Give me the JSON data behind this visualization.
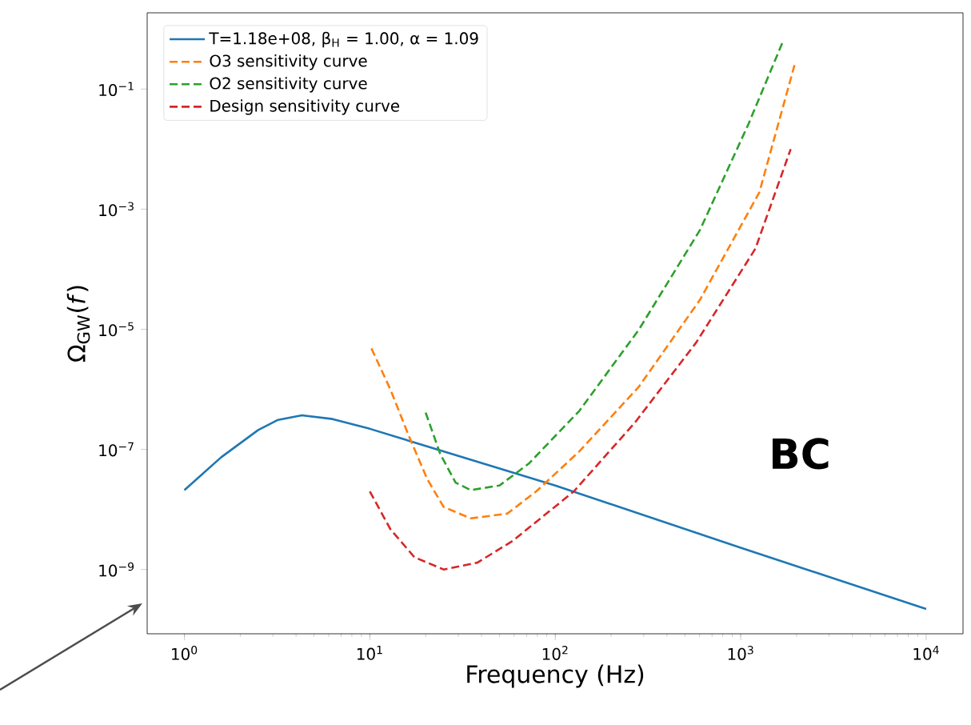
{
  "chart_data": {
    "type": "line",
    "log": "xy",
    "legend": "top left",
    "xlabel": "Frequency (Hz)",
    "ylabel": "Ω$_{GW}$(*f*)",
    "xlim": [
      0.63,
      15800
    ],
    "ylim": [
      8.5e-11,
      1.86
    ],
    "xticks": [
      {
        "value": 1,
        "label": "10$^{0}$"
      },
      {
        "value": 10,
        "label": "10$^{1}$"
      },
      {
        "value": 100,
        "label": "10$^{2}$"
      },
      {
        "value": 1000,
        "label": "10$^{3}$"
      },
      {
        "value": 10000,
        "label": "10$^{4}$"
      }
    ],
    "yticks": [
      {
        "value": 1e-09,
        "label": "10$^{−9}$"
      },
      {
        "value": 1e-07,
        "label": "10$^{−7}$"
      },
      {
        "value": 1e-05,
        "label": "10$^{−5}$"
      },
      {
        "value": 0.001,
        "label": "10$^{−3}$"
      },
      {
        "value": 0.1,
        "label": "10$^{−1}$"
      }
    ],
    "annotations": [
      "BC"
    ],
    "series": [
      {
        "name": "T=1.18e+08, β$_{H}$ = 1.00, α = 1.09",
        "color": "#1f77b4",
        "line_style": "solid",
        "x": [
          1,
          1.58,
          2.5,
          3.2,
          4.3,
          6.3,
          10,
          100,
          1000,
          10000
        ],
        "values": [
          2.1e-08,
          7.4e-08,
          2.1e-07,
          3.1e-07,
          3.7e-07,
          3.2e-07,
          2.2e-07,
          2.5e-08,
          2.3e-09,
          2.2e-10
        ]
      },
      {
        "name": "O3 sensitivity curve",
        "color": "#ff7f0e",
        "line_style": "dashed",
        "x": [
          10.2,
          12.9,
          16.2,
          20.4,
          25,
          35,
          55,
          79,
          135,
          282,
          603,
          1260,
          1950
        ],
        "values": [
          4.8e-06,
          1e-06,
          1.7e-07,
          3.2e-08,
          1.1e-08,
          7.1e-09,
          8.5e-09,
          2e-08,
          9.3e-08,
          1.1e-06,
          3.1e-05,
          0.0019,
          0.25
        ]
      },
      {
        "name": "O2 sensitivity curve",
        "color": "#2ca02c",
        "line_style": "dashed",
        "x": [
          20,
          24,
          29,
          35,
          50,
          72,
          135,
          282,
          603,
          1100,
          1700
        ],
        "values": [
          4.1e-07,
          8.3e-08,
          2.8e-08,
          2.1e-08,
          2.5e-08,
          5.8e-08,
          4.4e-07,
          9.8e-06,
          0.00045,
          0.026,
          0.65
        ]
      },
      {
        "name": "Design sensitivity curve",
        "color": "#d62728",
        "line_style": "dashed",
        "x": [
          10,
          12.9,
          17.4,
          25,
          38,
          59,
          126,
          269,
          575,
          1200,
          1860
        ],
        "values": [
          2e-08,
          4.7e-09,
          1.6e-09,
          1e-09,
          1.3e-09,
          3e-09,
          2e-08,
          2.8e-07,
          6e-06,
          0.00022,
          0.01
        ]
      }
    ]
  }
}
